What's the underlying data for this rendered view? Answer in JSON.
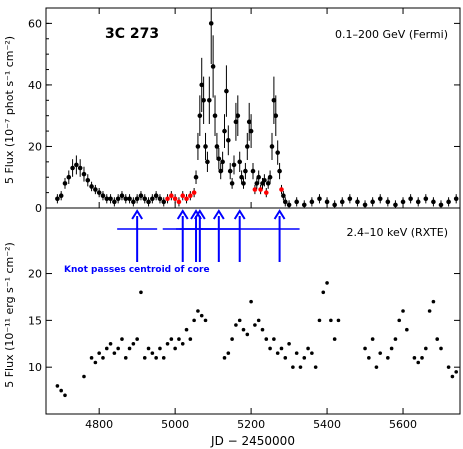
{
  "chart_data": [
    {
      "panel": "top",
      "type": "scatter",
      "title": "3C 273",
      "annotation": "0.1–200 GeV (Fermi)",
      "ylabel": "5 Flux (10⁻⁷ phot s⁻¹ cm⁻²)",
      "xlim": [
        4660,
        5750
      ],
      "ylim": [
        0,
        65
      ],
      "yticks": [
        0,
        20,
        40,
        60
      ],
      "grid": false,
      "colors": {
        "points": "#000000",
        "highlight": "#ff0000"
      },
      "series": [
        {
          "x": [
            4690,
            4700,
            4710,
            4720,
            4730,
            4740,
            4750,
            4760,
            4770,
            4780,
            4790,
            4800,
            4810,
            4820,
            4830,
            4840,
            4850,
            4860,
            4870,
            4880,
            4890,
            4900,
            4910,
            4920,
            4930,
            4940,
            4950,
            4960,
            4970,
            4980,
            4990,
            5000,
            5010,
            5020,
            5030,
            5040,
            5050,
            5055,
            5060,
            5065,
            5070,
            5075,
            5080,
            5085,
            5090,
            5095,
            5100,
            5105,
            5110,
            5115,
            5120,
            5125,
            5130,
            5135,
            5140,
            5145,
            5150,
            5155,
            5160,
            5165,
            5170,
            5175,
            5180,
            5185,
            5190,
            5195,
            5200,
            5205,
            5210,
            5215,
            5220,
            5225,
            5230,
            5235,
            5240,
            5245,
            5250,
            5255,
            5260,
            5265,
            5270,
            5275,
            5280,
            5285,
            5290,
            5300,
            5320,
            5340,
            5360,
            5380,
            5400,
            5420,
            5440,
            5460,
            5480,
            5500,
            5520,
            5540,
            5560,
            5580,
            5600,
            5620,
            5640,
            5660,
            5680,
            5700,
            5720,
            5740
          ],
          "y": [
            3,
            4,
            8,
            10,
            13,
            14,
            13,
            11,
            9,
            7,
            6,
            5,
            4,
            3,
            3,
            2,
            3,
            4,
            3,
            3,
            2,
            3,
            4,
            3,
            2,
            3,
            4,
            3,
            2,
            3,
            4,
            3,
            2,
            4,
            3,
            4,
            5,
            10,
            20,
            30,
            40,
            35,
            20,
            15,
            35,
            60,
            46,
            30,
            20,
            16,
            12,
            15,
            25,
            38,
            22,
            12,
            8,
            14,
            28,
            30,
            15,
            10,
            8,
            12,
            20,
            28,
            25,
            12,
            6,
            8,
            10,
            6,
            8,
            9,
            5,
            8,
            10,
            20,
            35,
            30,
            18,
            12,
            6,
            4,
            2,
            1,
            2,
            1,
            2,
            3,
            2,
            1,
            2,
            3,
            2,
            1,
            2,
            3,
            2,
            1,
            2,
            3,
            2,
            3,
            2,
            1,
            2,
            3
          ]
        }
      ]
    },
    {
      "panel": "bottom",
      "type": "scatter",
      "annotation": "2.4–10 keV (RXTE)",
      "xlabel": "JD − 2450000",
      "ylabel": "5 Flux (10⁻¹¹ erg s⁻¹ cm⁻²)",
      "xlim": [
        4660,
        5750
      ],
      "ylim": [
        5,
        27
      ],
      "xticks": [
        4800,
        5000,
        5200,
        5400,
        5600
      ],
      "yticks": [
        10,
        15,
        20
      ],
      "grid": false,
      "colors": {
        "points": "#000000",
        "arrows": "#0000ff"
      },
      "series": [
        {
          "x": [
            4690,
            4700,
            4710,
            4760,
            4780,
            4790,
            4800,
            4810,
            4820,
            4830,
            4840,
            4850,
            4860,
            4870,
            4880,
            4890,
            4900,
            4910,
            4920,
            4930,
            4940,
            4950,
            4960,
            4970,
            4980,
            4990,
            5000,
            5010,
            5020,
            5030,
            5040,
            5050,
            5060,
            5070,
            5080,
            5130,
            5140,
            5150,
            5160,
            5170,
            5180,
            5190,
            5200,
            5210,
            5220,
            5230,
            5240,
            5250,
            5260,
            5270,
            5280,
            5290,
            5300,
            5310,
            5320,
            5330,
            5340,
            5350,
            5360,
            5370,
            5380,
            5390,
            5400,
            5410,
            5420,
            5430,
            5500,
            5510,
            5520,
            5530,
            5540,
            5560,
            5570,
            5580,
            5590,
            5600,
            5610,
            5630,
            5640,
            5650,
            5660,
            5670,
            5680,
            5690,
            5700,
            5720,
            5730,
            5740
          ],
          "y": [
            8,
            7.5,
            7,
            9,
            11,
            10.5,
            11.5,
            11,
            12,
            12.5,
            11.5,
            12,
            13,
            11,
            12,
            12.5,
            13,
            18,
            11,
            12,
            11.5,
            11,
            12,
            11,
            12.5,
            13,
            12,
            13,
            12.5,
            14,
            13,
            15,
            16,
            15.5,
            15,
            11,
            11.5,
            13,
            14.5,
            15,
            14,
            13.5,
            17,
            14.5,
            15,
            14,
            13,
            12,
            13,
            11.5,
            12,
            11,
            12.5,
            10,
            11.5,
            10,
            11,
            12,
            11.5,
            10,
            15,
            18,
            19,
            15,
            13,
            15,
            12,
            11,
            13,
            10,
            11.5,
            11,
            12,
            13,
            15,
            16,
            14,
            11,
            10.5,
            11,
            12,
            16,
            17,
            13,
            12,
            10,
            9,
            9.5
          ]
        }
      ],
      "arrows_x": [
        4900,
        5020,
        5055,
        5065,
        5115,
        5170,
        5275
      ],
      "caption": "Knot passes centroid of core"
    }
  ]
}
